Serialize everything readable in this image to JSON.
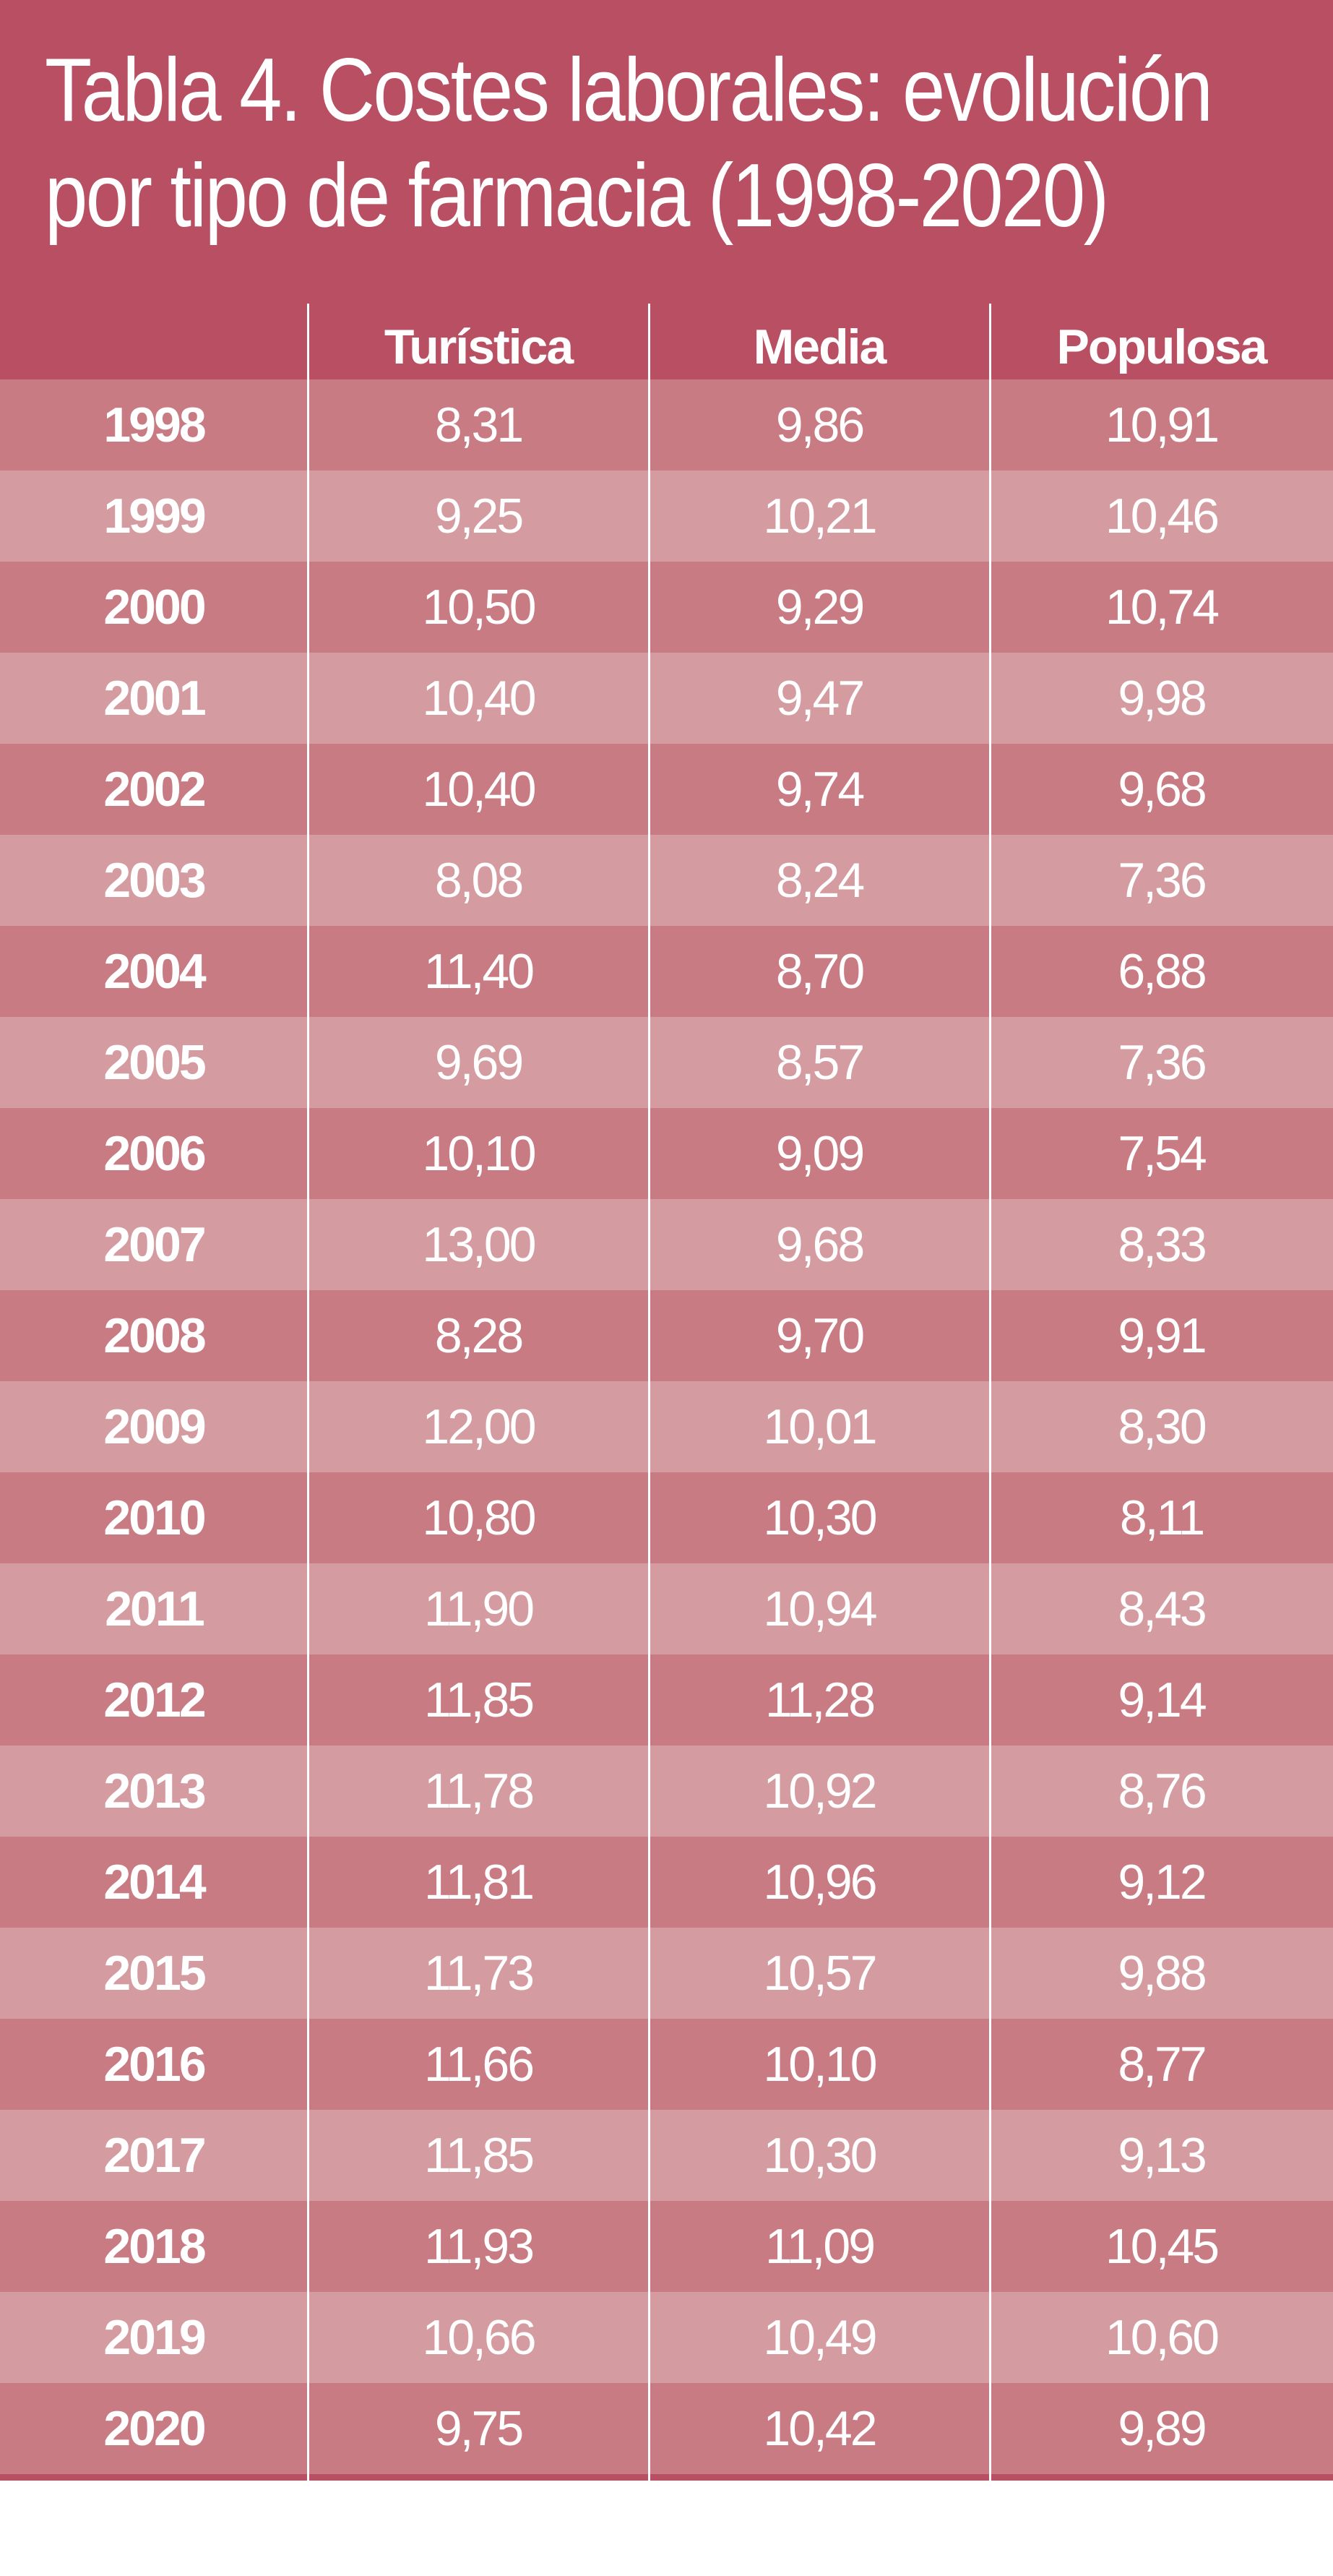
{
  "chart_data": {
    "type": "table",
    "title": "Tabla 4. Costes laborales: evolución por tipo de farmacia (1998-2020)",
    "title_lines": [
      "Tabla 4. Costes laborales: evolución",
      "por tipo de farmacia (1998-2020)"
    ],
    "columns": [
      "",
      "Turística",
      "Media",
      "Populosa"
    ],
    "rows": [
      {
        "year": "1998",
        "values": [
          "8,31",
          "9,86",
          "10,91"
        ]
      },
      {
        "year": "1999",
        "values": [
          "9,25",
          "10,21",
          "10,46"
        ]
      },
      {
        "year": "2000",
        "values": [
          "10,50",
          "9,29",
          "10,74"
        ]
      },
      {
        "year": "2001",
        "values": [
          "10,40",
          "9,47",
          "9,98"
        ]
      },
      {
        "year": "2002",
        "values": [
          "10,40",
          "9,74",
          "9,68"
        ]
      },
      {
        "year": "2003",
        "values": [
          "8,08",
          "8,24",
          "7,36"
        ]
      },
      {
        "year": "2004",
        "values": [
          "11,40",
          "8,70",
          "6,88"
        ]
      },
      {
        "year": "2005",
        "values": [
          "9,69",
          "8,57",
          "7,36"
        ]
      },
      {
        "year": "2006",
        "values": [
          "10,10",
          "9,09",
          "7,54"
        ]
      },
      {
        "year": "2007",
        "values": [
          "13,00",
          "9,68",
          "8,33"
        ]
      },
      {
        "year": "2008",
        "values": [
          "8,28",
          "9,70",
          "9,91"
        ]
      },
      {
        "year": "2009",
        "values": [
          "12,00",
          "10,01",
          "8,30"
        ]
      },
      {
        "year": "2010",
        "values": [
          "10,80",
          "10,30",
          "8,11"
        ]
      },
      {
        "year": "2011",
        "values": [
          "11,90",
          "10,94",
          "8,43"
        ]
      },
      {
        "year": "2012",
        "values": [
          "11,85",
          "11,28",
          "9,14"
        ]
      },
      {
        "year": "2013",
        "values": [
          "11,78",
          "10,92",
          "8,76"
        ]
      },
      {
        "year": "2014",
        "values": [
          "11,81",
          "10,96",
          "9,12"
        ]
      },
      {
        "year": "2015",
        "values": [
          "11,73",
          "10,57",
          "9,88"
        ]
      },
      {
        "year": "2016",
        "values": [
          "11,66",
          "10,10",
          "8,77"
        ]
      },
      {
        "year": "2017",
        "values": [
          "11,85",
          "10,30",
          "9,13"
        ]
      },
      {
        "year": "2018",
        "values": [
          "11,93",
          "11,09",
          "10,45"
        ]
      },
      {
        "year": "2019",
        "values": [
          "10,66",
          "10,49",
          "10,60"
        ]
      },
      {
        "year": "2020",
        "values": [
          "9,75",
          "10,42",
          "9,89"
        ]
      }
    ]
  },
  "colors": {
    "header_background": "#b84f62",
    "row_dark": "#c87b82",
    "row_light": "#d49ca0",
    "text": "#ffffff",
    "divider": "#ffffff"
  }
}
